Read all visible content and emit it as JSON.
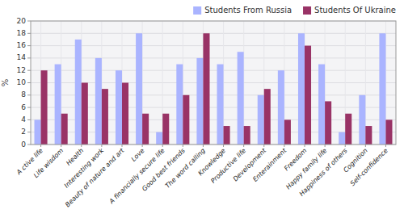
{
  "chart_data": {
    "type": "bar",
    "categories": [
      "A ctive life",
      "Life wisdom",
      "Health",
      "Interesting work",
      "Beauty of nature and art",
      "Love",
      "A financially secure life",
      "Good best friends",
      "The word calling",
      "Knowledge",
      "Productive life",
      "Development",
      "Enterainment",
      "Freedom",
      "Happy family life",
      "Happiness of others",
      "Cognition",
      "Self-confidence"
    ],
    "series": [
      {
        "name": "Students From Russia",
        "color": "#aab4ff",
        "values": [
          4,
          13,
          17,
          14,
          12,
          18,
          2,
          13,
          14,
          13,
          15,
          8,
          12,
          18,
          13,
          2,
          8,
          18
        ]
      },
      {
        "name": "Students Of Ukraine",
        "color": "#993366",
        "values": [
          12,
          5,
          10,
          9,
          10,
          5,
          5,
          8,
          18,
          3,
          3,
          9,
          4,
          16,
          7,
          5,
          3,
          4
        ]
      }
    ],
    "ylabel": "%",
    "ylim": [
      0,
      20
    ],
    "yticks": [
      0,
      2,
      4,
      6,
      8,
      10,
      12,
      14,
      16,
      18,
      20
    ],
    "grid": true,
    "legend": "upper right"
  }
}
